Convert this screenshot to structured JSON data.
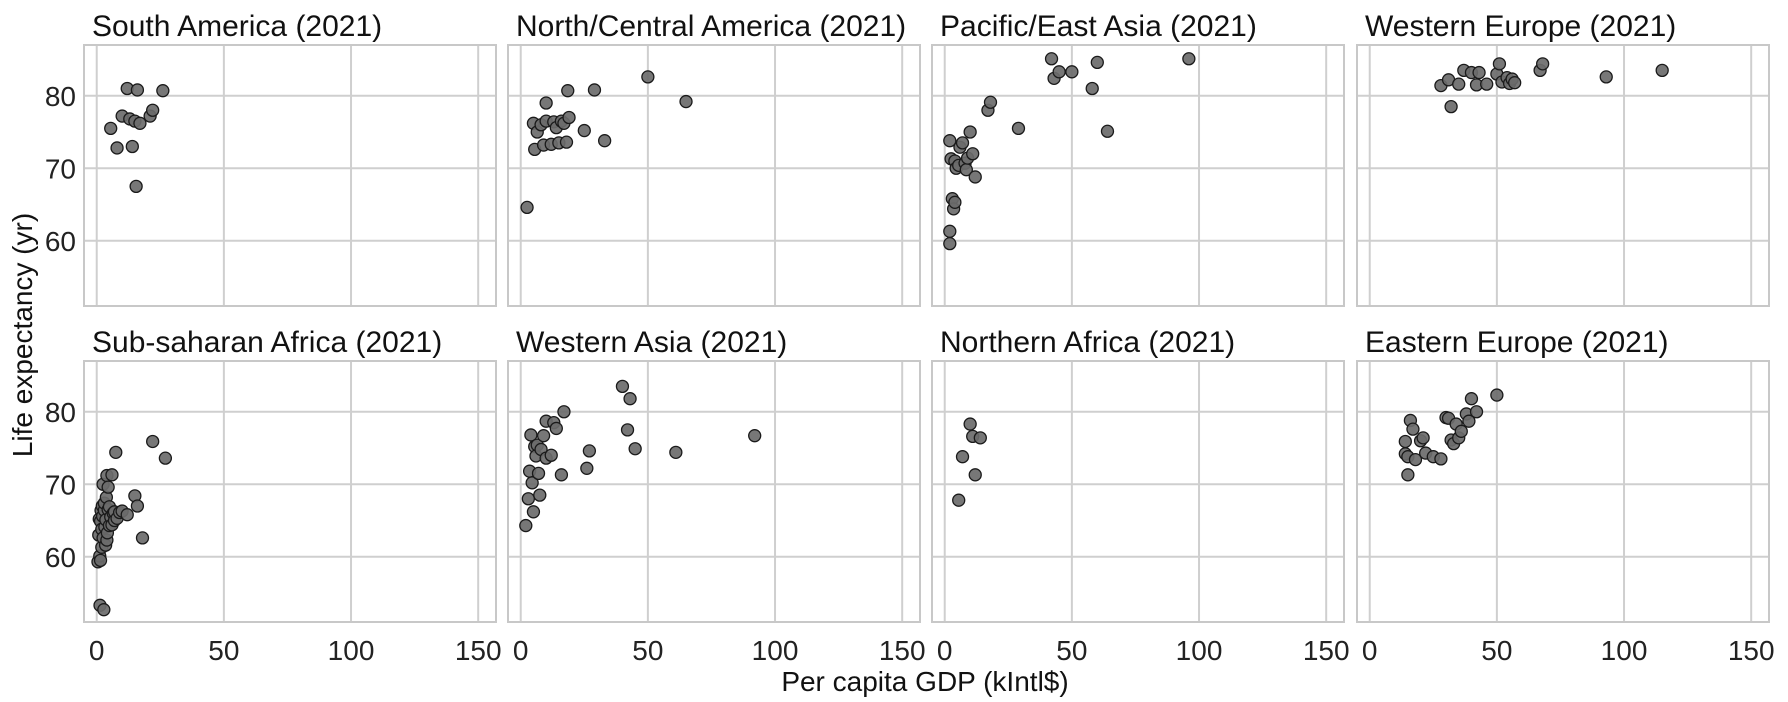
{
  "chart_data": {
    "type": "scatter",
    "xlabel": "Per capita GDP (kIntl$)",
    "ylabel": "Life expectancy (yr)",
    "xlim": [
      -5,
      157
    ],
    "ylim": [
      51,
      87
    ],
    "xticks": [
      0,
      50,
      100,
      150
    ],
    "yticks": [
      60,
      70,
      80
    ],
    "grid": true,
    "marker_color": "#6b6b6b",
    "panels": [
      {
        "title": "South America (2021)",
        "points": [
          [
            5.5,
            75.5
          ],
          [
            8,
            72.8
          ],
          [
            10,
            77.2
          ],
          [
            12,
            81.0
          ],
          [
            13,
            76.8
          ],
          [
            14,
            73.0
          ],
          [
            15,
            76.5
          ],
          [
            15.5,
            67.5
          ],
          [
            16,
            80.8
          ],
          [
            17,
            76.2
          ],
          [
            21,
            77.2
          ],
          [
            22,
            78.0
          ],
          [
            26,
            80.7
          ]
        ]
      },
      {
        "title": "North/Central America (2021)",
        "points": [
          [
            2.5,
            64.6
          ],
          [
            5,
            76.2
          ],
          [
            5.5,
            72.6
          ],
          [
            6.5,
            75.0
          ],
          [
            8,
            76.0
          ],
          [
            9,
            73.2
          ],
          [
            10,
            76.5
          ],
          [
            10,
            79.0
          ],
          [
            12,
            73.3
          ],
          [
            13,
            76.4
          ],
          [
            14,
            75.6
          ],
          [
            15,
            73.5
          ],
          [
            16,
            76.5
          ],
          [
            17,
            76.2
          ],
          [
            18,
            73.6
          ],
          [
            18.5,
            80.7
          ],
          [
            19,
            77.0
          ],
          [
            25,
            75.2
          ],
          [
            29,
            80.8
          ],
          [
            33,
            73.8
          ],
          [
            50,
            82.6
          ],
          [
            65,
            79.2
          ]
        ]
      },
      {
        "title": "Pacific/East Asia (2021)",
        "points": [
          [
            2,
            73.8
          ],
          [
            2,
            61.3
          ],
          [
            2,
            59.6
          ],
          [
            2.5,
            71.3
          ],
          [
            3,
            65.8
          ],
          [
            3.5,
            64.4
          ],
          [
            4,
            65.3
          ],
          [
            4,
            71.0
          ],
          [
            4.5,
            70.0
          ],
          [
            5.5,
            70.4
          ],
          [
            6,
            72.9
          ],
          [
            7,
            73.5
          ],
          [
            8,
            70.7
          ],
          [
            8.5,
            69.8
          ],
          [
            9,
            71.4
          ],
          [
            10,
            75.0
          ],
          [
            11,
            72.0
          ],
          [
            12,
            68.8
          ],
          [
            17,
            78.0
          ],
          [
            18,
            79.1
          ],
          [
            29,
            75.5
          ],
          [
            42,
            85.1
          ],
          [
            43,
            82.4
          ],
          [
            45,
            83.3
          ],
          [
            50,
            83.3
          ],
          [
            58,
            81.0
          ],
          [
            60,
            84.6
          ],
          [
            64,
            75.1
          ],
          [
            96,
            85.1
          ]
        ]
      },
      {
        "title": "Western Europe (2021)",
        "points": [
          [
            28,
            81.4
          ],
          [
            31,
            82.2
          ],
          [
            32,
            78.5
          ],
          [
            35,
            81.6
          ],
          [
            37,
            83.5
          ],
          [
            40,
            83.2
          ],
          [
            42,
            81.5
          ],
          [
            43,
            83.2
          ],
          [
            46,
            81.6
          ],
          [
            50,
            83.0
          ],
          [
            51,
            84.4
          ],
          [
            52,
            81.9
          ],
          [
            54,
            82.5
          ],
          [
            55,
            81.7
          ],
          [
            56,
            82.3
          ],
          [
            57,
            81.8
          ],
          [
            67,
            83.5
          ],
          [
            68,
            84.4
          ],
          [
            93,
            82.6
          ],
          [
            115,
            83.5
          ]
        ]
      },
      {
        "title": "Sub-saharan Africa (2021)",
        "points": [
          [
            0.5,
            59.3
          ],
          [
            0.8,
            63.0
          ],
          [
            1,
            65.2
          ],
          [
            1.2,
            60.1
          ],
          [
            1.3,
            53.3
          ],
          [
            1.5,
            59.5
          ],
          [
            1.5,
            64.9
          ],
          [
            1.7,
            66.4
          ],
          [
            2,
            61.3
          ],
          [
            2,
            63.8
          ],
          [
            2.2,
            67.0
          ],
          [
            2.3,
            65.6
          ],
          [
            2.5,
            62.6
          ],
          [
            2.5,
            70.0
          ],
          [
            2.8,
            52.7
          ],
          [
            3,
            66.4
          ],
          [
            3,
            67.4
          ],
          [
            3.2,
            64.1
          ],
          [
            3.5,
            61.6
          ],
          [
            3.6,
            65.1
          ],
          [
            3.8,
            68.2
          ],
          [
            4,
            62.3
          ],
          [
            4,
            71.2
          ],
          [
            4.2,
            63.3
          ],
          [
            4.5,
            66.5
          ],
          [
            4.5,
            69.6
          ],
          [
            5,
            64.3
          ],
          [
            5,
            66.9
          ],
          [
            5.5,
            65.5
          ],
          [
            6,
            64.4
          ],
          [
            6,
            71.3
          ],
          [
            6.5,
            66.0
          ],
          [
            7,
            65.0
          ],
          [
            7,
            66.2
          ],
          [
            7.5,
            74.4
          ],
          [
            8,
            65.3
          ],
          [
            9,
            66.1
          ],
          [
            10,
            66.3
          ],
          [
            12,
            65.8
          ],
          [
            15,
            68.4
          ],
          [
            16,
            67.0
          ],
          [
            18,
            62.6
          ],
          [
            22,
            75.9
          ],
          [
            27,
            73.6
          ]
        ]
      },
      {
        "title": "Western Asia (2021)",
        "points": [
          [
            2,
            64.3
          ],
          [
            3,
            68.0
          ],
          [
            3.5,
            71.8
          ],
          [
            4,
            76.8
          ],
          [
            4.5,
            70.2
          ],
          [
            5,
            66.2
          ],
          [
            5.5,
            75.2
          ],
          [
            6,
            73.9
          ],
          [
            6.5,
            75.4
          ],
          [
            7,
            71.5
          ],
          [
            7.5,
            68.5
          ],
          [
            8,
            74.8
          ],
          [
            9,
            76.7
          ],
          [
            10,
            73.6
          ],
          [
            10,
            78.7
          ],
          [
            12,
            74.0
          ],
          [
            13,
            78.5
          ],
          [
            14,
            77.7
          ],
          [
            16,
            71.3
          ],
          [
            17,
            80.0
          ],
          [
            26,
            72.2
          ],
          [
            27,
            74.6
          ],
          [
            40,
            83.5
          ],
          [
            42,
            77.5
          ],
          [
            43,
            81.8
          ],
          [
            45,
            74.9
          ],
          [
            61,
            74.4
          ],
          [
            92,
            76.7
          ]
        ]
      },
      {
        "title": "Northern Africa (2021)",
        "points": [
          [
            5.5,
            67.8
          ],
          [
            7,
            73.8
          ],
          [
            10,
            78.3
          ],
          [
            11,
            76.6
          ],
          [
            12,
            71.3
          ],
          [
            14,
            76.4
          ]
        ]
      },
      {
        "title": "Eastern Europe (2021)",
        "points": [
          [
            14,
            74.2
          ],
          [
            14,
            75.9
          ],
          [
            15,
            71.3
          ],
          [
            15,
            73.8
          ],
          [
            16,
            78.8
          ],
          [
            17,
            77.6
          ],
          [
            18,
            73.4
          ],
          [
            20,
            76.0
          ],
          [
            21,
            76.4
          ],
          [
            22,
            74.3
          ],
          [
            25,
            73.8
          ],
          [
            28,
            73.5
          ],
          [
            30,
            79.2
          ],
          [
            31,
            79.1
          ],
          [
            32,
            76.1
          ],
          [
            33,
            75.6
          ],
          [
            34,
            78.3
          ],
          [
            35,
            76.4
          ],
          [
            36,
            77.3
          ],
          [
            38,
            79.7
          ],
          [
            39,
            78.7
          ],
          [
            40,
            81.8
          ],
          [
            42,
            80.0
          ],
          [
            50,
            82.3
          ]
        ]
      }
    ]
  }
}
